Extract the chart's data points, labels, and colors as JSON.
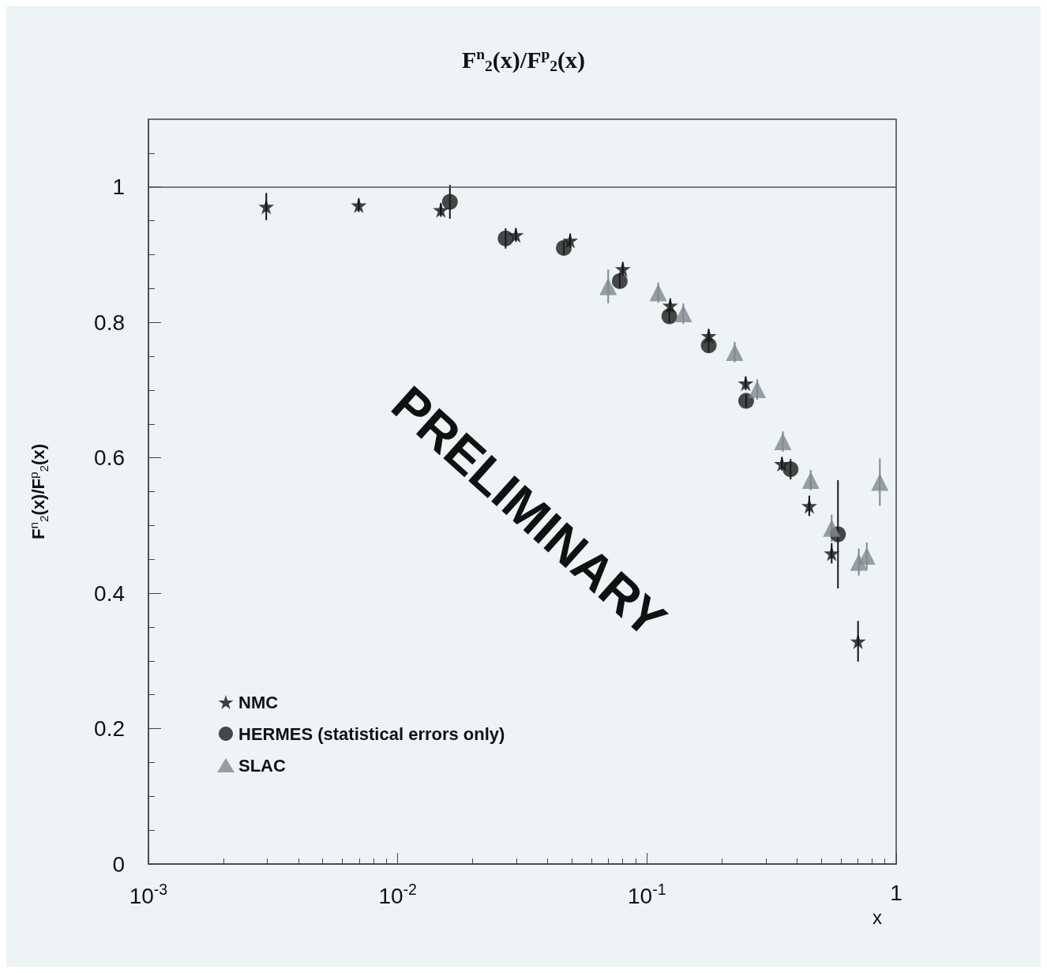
{
  "chart_data": {
    "type": "scatter",
    "title": "F$^{n}$$_{2}$(x)/F$^{p}$$_{2}$(x)",
    "ylabel": "F$^{n}$$_{2}$(x)/F$^{p}$$_{2}$(x)",
    "xlabel": "x",
    "log": "x",
    "xlim": [
      0.001,
      1
    ],
    "xticks": [
      {
        "value": 0.001,
        "label": "10$^{-3}$"
      },
      {
        "value": 0.01,
        "label": "10$^{-2}$"
      },
      {
        "value": 0.1,
        "label": "10$^{-1}$"
      },
      1
    ],
    "ylim": [
      0,
      1.1
    ],
    "yticks": [
      0,
      0.2,
      0.4,
      0.6,
      0.8,
      1
    ],
    "grid": false,
    "legend": "bottom left",
    "ref_lines": [
      {
        "axis": "y",
        "value": 1,
        "color": "#555555"
      }
    ],
    "annotations": [
      "PRELIMINARY"
    ],
    "series": [
      {
        "name": "NMC",
        "color": "#111111",
        "marker": "star",
        "x": [
          0.00297,
          0.00698,
          0.0149,
          0.0298,
          0.0492,
          0.08,
          0.124,
          0.177,
          0.249,
          0.348,
          0.448,
          0.551,
          0.703
        ],
        "values": [
          0.971,
          0.973,
          0.966,
          0.929,
          0.921,
          0.879,
          0.825,
          0.78,
          0.71,
          0.591,
          0.529,
          0.459,
          0.329
        ],
        "errors": [
          0.02,
          0.01,
          0.01,
          0.01,
          0.01,
          0.01,
          0.01,
          0.01,
          0.01,
          0.01,
          0.015,
          0.015,
          0.03
        ]
      },
      {
        "name": "HERMES (statistical errors only)",
        "color": "#1a1a1a",
        "marker": "circle",
        "x": [
          0.0162,
          0.0271,
          0.0464,
          0.0778,
          0.123,
          0.177,
          0.25,
          0.377,
          0.584
        ],
        "values": [
          0.978,
          0.924,
          0.91,
          0.861,
          0.809,
          0.766,
          0.684,
          0.583,
          0.487
        ],
        "errors": [
          0.025,
          0.015,
          0.01,
          0.01,
          0.01,
          0.01,
          0.01,
          0.015,
          0.08
        ]
      },
      {
        "name": "SLAC",
        "color": "#808890",
        "marker": "triangle",
        "x": [
          0.0699,
          0.111,
          0.14,
          0.225,
          0.277,
          0.351,
          0.454,
          0.551,
          0.708,
          0.762,
          0.86
        ],
        "values": [
          0.853,
          0.844,
          0.813,
          0.756,
          0.701,
          0.624,
          0.567,
          0.496,
          0.446,
          0.455,
          0.564
        ],
        "errors": [
          0.025,
          0.015,
          0.015,
          0.015,
          0.015,
          0.015,
          0.015,
          0.02,
          0.02,
          0.02,
          0.035
        ]
      }
    ]
  }
}
